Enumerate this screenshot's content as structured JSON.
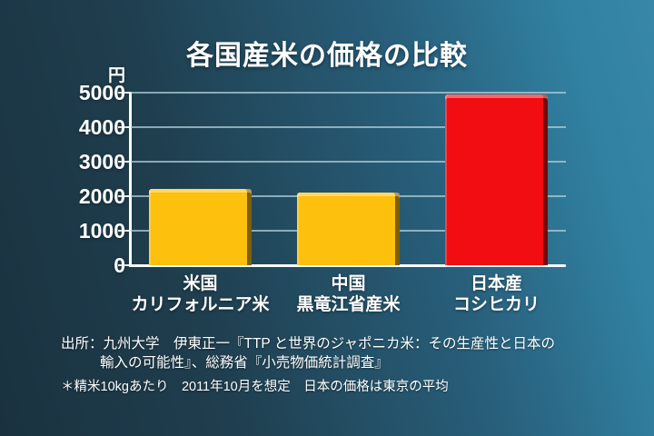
{
  "slide": {
    "title": "各国産米の価格の比較",
    "source_line1": "出所：九州大学　伊東正一『TTP と世界のジャポニカ米：その生産性と日本の",
    "source_line2": "輸入の可能性』、総務省『小売物価統計調査』",
    "footnote": "＊精米10kgあたり　2011年10月を想定　日本の価格は東京の平均"
  },
  "chart_data": {
    "type": "bar",
    "title": "各国産米の価格の比較",
    "unit_label": "円",
    "categories": [
      {
        "line1": "米国",
        "line2": "カリフォルニア米"
      },
      {
        "line1": "中国",
        "line2": "黒竜江省産米"
      },
      {
        "line1": "日本産",
        "line2": "コシヒカリ"
      }
    ],
    "values": [
      2200,
      2100,
      4950
    ],
    "bar_colors": [
      "#fcc00d",
      "#fcc00d",
      "#f20d12"
    ],
    "ylim": [
      0,
      5000
    ],
    "yticks": [
      0,
      1000,
      2000,
      3000,
      4000,
      5000
    ],
    "grid": true,
    "legend": "none"
  },
  "colors": {
    "background_dark": "#1a3240",
    "background_light": "#3887a9",
    "gold_bar": "#fcc00d",
    "red_bar": "#f20d12",
    "gridline": "#b0cdd8",
    "axis": "#ffffff",
    "text": "#ffffff"
  }
}
